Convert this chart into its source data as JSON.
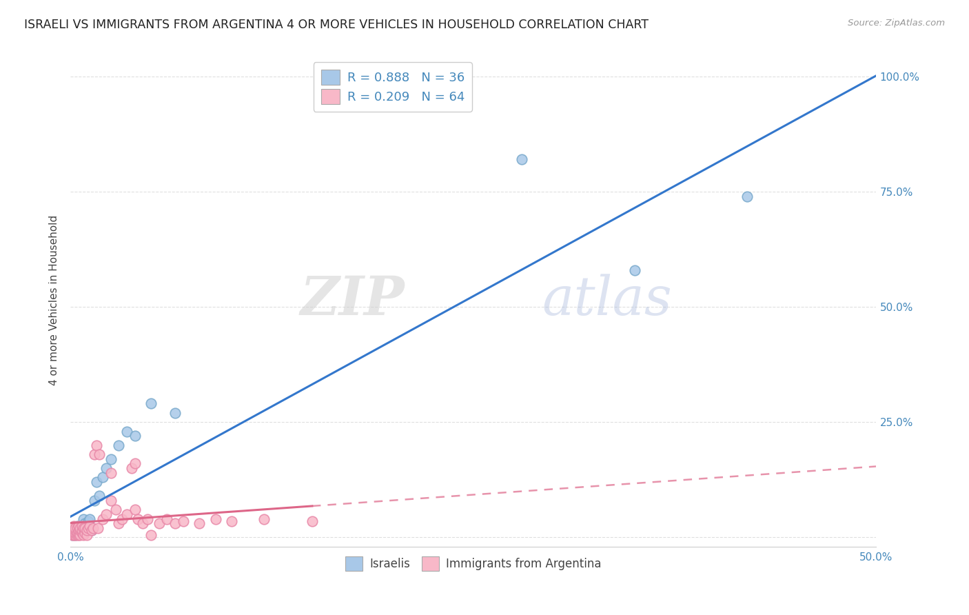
{
  "title": "ISRAELI VS IMMIGRANTS FROM ARGENTINA 4 OR MORE VEHICLES IN HOUSEHOLD CORRELATION CHART",
  "source": "Source: ZipAtlas.com",
  "ylabel": "4 or more Vehicles in Household",
  "xlim": [
    0.0,
    0.5
  ],
  "ylim": [
    -0.02,
    1.05
  ],
  "background_color": "#ffffff",
  "grid_color": "#d8d8d8",
  "blue_scatter_color": "#a8c8e8",
  "pink_scatter_color": "#f8b8c8",
  "blue_scatter_edge": "#7aaacc",
  "pink_scatter_edge": "#e888a8",
  "blue_line_color": "#3377cc",
  "pink_solid_color": "#dd6688",
  "pink_dashed_color": "#dd6688",
  "R_blue": 0.888,
  "N_blue": 36,
  "R_pink": 0.209,
  "N_pink": 64,
  "legend_label_blue": "Israelis",
  "legend_label_pink": "Immigrants from Argentina",
  "watermark_zip": "ZIP",
  "watermark_atlas": "atlas",
  "x_tick_positions": [
    0.0,
    0.1,
    0.2,
    0.3,
    0.4,
    0.5
  ],
  "x_tick_labels": [
    "0.0%",
    "",
    "",
    "",
    "",
    "50.0%"
  ],
  "y_tick_positions": [
    0.0,
    0.25,
    0.5,
    0.75,
    1.0
  ],
  "y_tick_labels": [
    "",
    "25.0%",
    "50.0%",
    "75.0%",
    "100.0%"
  ],
  "israelis_x": [
    0.001,
    0.001,
    0.002,
    0.002,
    0.003,
    0.003,
    0.003,
    0.004,
    0.004,
    0.005,
    0.005,
    0.005,
    0.006,
    0.006,
    0.007,
    0.008,
    0.008,
    0.009,
    0.01,
    0.011,
    0.012,
    0.013,
    0.015,
    0.016,
    0.018,
    0.02,
    0.022,
    0.025,
    0.03,
    0.035,
    0.04,
    0.05,
    0.065,
    0.28,
    0.35,
    0.42
  ],
  "israelis_y": [
    0.005,
    0.01,
    0.01,
    0.02,
    0.005,
    0.01,
    0.02,
    0.015,
    0.025,
    0.008,
    0.012,
    0.02,
    0.015,
    0.025,
    0.018,
    0.02,
    0.04,
    0.03,
    0.02,
    0.035,
    0.04,
    0.015,
    0.08,
    0.12,
    0.09,
    0.13,
    0.15,
    0.17,
    0.2,
    0.23,
    0.22,
    0.29,
    0.27,
    0.82,
    0.58,
    0.74
  ],
  "argentina_x": [
    0.0005,
    0.001,
    0.001,
    0.001,
    0.002,
    0.002,
    0.002,
    0.002,
    0.002,
    0.003,
    0.003,
    0.003,
    0.003,
    0.004,
    0.004,
    0.004,
    0.005,
    0.005,
    0.005,
    0.005,
    0.006,
    0.006,
    0.006,
    0.007,
    0.007,
    0.007,
    0.008,
    0.008,
    0.009,
    0.009,
    0.01,
    0.01,
    0.011,
    0.012,
    0.013,
    0.014,
    0.015,
    0.016,
    0.017,
    0.018,
    0.02,
    0.022,
    0.025,
    0.025,
    0.028,
    0.03,
    0.032,
    0.035,
    0.038,
    0.04,
    0.04,
    0.042,
    0.045,
    0.048,
    0.05,
    0.055,
    0.06,
    0.065,
    0.07,
    0.08,
    0.09,
    0.1,
    0.12,
    0.15
  ],
  "argentina_y": [
    0.01,
    0.005,
    0.01,
    0.015,
    0.005,
    0.01,
    0.015,
    0.02,
    0.025,
    0.005,
    0.01,
    0.015,
    0.02,
    0.005,
    0.01,
    0.02,
    0.005,
    0.01,
    0.015,
    0.025,
    0.005,
    0.015,
    0.02,
    0.01,
    0.015,
    0.025,
    0.005,
    0.02,
    0.01,
    0.02,
    0.005,
    0.015,
    0.02,
    0.025,
    0.015,
    0.02,
    0.18,
    0.2,
    0.02,
    0.18,
    0.04,
    0.05,
    0.14,
    0.08,
    0.06,
    0.03,
    0.04,
    0.05,
    0.15,
    0.06,
    0.16,
    0.04,
    0.03,
    0.04,
    0.005,
    0.03,
    0.04,
    0.03,
    0.035,
    0.03,
    0.04,
    0.035,
    0.04,
    0.035
  ]
}
